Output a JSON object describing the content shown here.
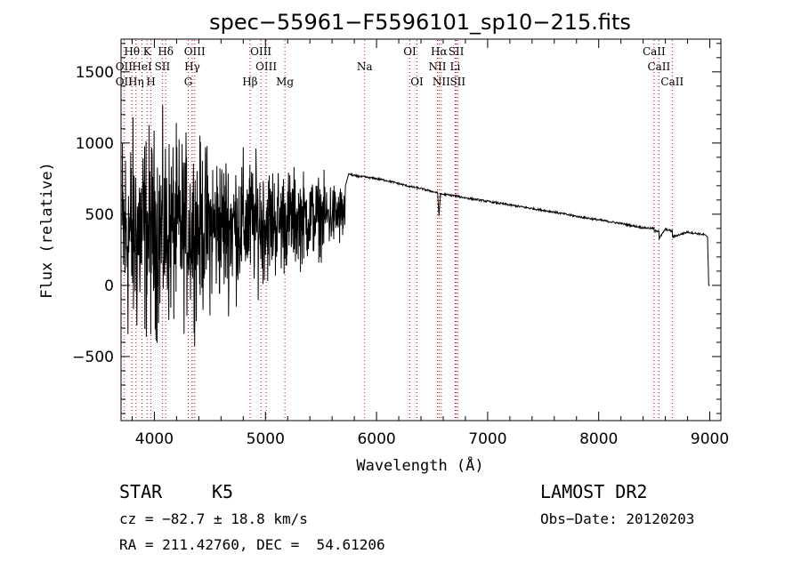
{
  "chart_data": {
    "type": "line",
    "title": "spec−55961−F5596101_sp10−215.fits",
    "xlabel": "Wavelength (Å)",
    "ylabel": "Flux (relative)",
    "xlim": [
      3700,
      9100
    ],
    "ylim": [
      -950,
      1730
    ],
    "x_ticks": [
      4000,
      5000,
      6000,
      7000,
      8000,
      9000
    ],
    "x_tick_labels": [
      "4000",
      "5000",
      "6000",
      "7000",
      "8000",
      "9000"
    ],
    "y_ticks": [
      -500,
      0,
      500,
      1000,
      1500
    ],
    "y_tick_labels": [
      "−500",
      "0",
      "500",
      "1000",
      "1500"
    ],
    "series": [
      {
        "name": "flux",
        "noisy_region": {
          "x_start": 3710,
          "x_end": 5720,
          "mean_start": 350,
          "mean_end": 500,
          "amplitude_start": 850,
          "amplitude_end": 220
        },
        "x": [
          5720,
          5750,
          5800,
          5900,
          6000,
          6100,
          6200,
          6300,
          6400,
          6500,
          6550,
          6562,
          6575,
          6600,
          6700,
          6800,
          7000,
          7200,
          7400,
          7600,
          7800,
          8000,
          8200,
          8400,
          8498,
          8500,
          8542,
          8545,
          8600,
          8662,
          8665,
          8800,
          8960,
          8980,
          8990,
          9000
        ],
        "y": [
          700,
          785,
          770,
          760,
          750,
          735,
          715,
          695,
          680,
          660,
          650,
          490,
          640,
          640,
          630,
          615,
          590,
          565,
          540,
          515,
          485,
          460,
          435,
          405,
          400,
          380,
          385,
          330,
          395,
          380,
          340,
          375,
          355,
          340,
          0,
          0
        ]
      }
    ],
    "line_markers": [
      {
        "label": "Hθ",
        "x": 3798,
        "row": 1
      },
      {
        "label": "K",
        "x": 3934,
        "row": 1
      },
      {
        "label": "Hδ",
        "x": 4102,
        "row": 1
      },
      {
        "label": "OIII",
        "x": 4363,
        "row": 1
      },
      {
        "label": "OIII",
        "x": 4959,
        "row": 1
      },
      {
        "label": "OI",
        "x": 6300,
        "row": 1
      },
      {
        "label": "Hα",
        "x": 6563,
        "row": 1
      },
      {
        "label": "SII",
        "x": 6717,
        "row": 1
      },
      {
        "label": "CaII",
        "x": 8498,
        "row": 1
      },
      {
        "label": "OII",
        "x": 3727,
        "row": 2
      },
      {
        "label": "HeI",
        "x": 3889,
        "row": 2
      },
      {
        "label": "SII",
        "x": 4072,
        "row": 2
      },
      {
        "label": "Hγ",
        "x": 4341,
        "row": 2
      },
      {
        "label": "OIII",
        "x": 5007,
        "row": 2
      },
      {
        "label": "Na",
        "x": 5893,
        "row": 2
      },
      {
        "label": "NII",
        "x": 6548,
        "row": 2
      },
      {
        "label": "Li",
        "x": 6708,
        "row": 2
      },
      {
        "label": "CaII",
        "x": 8542,
        "row": 2
      },
      {
        "label": "OII",
        "x": 3727,
        "row": 3
      },
      {
        "label": "Hη",
        "x": 3835,
        "row": 3
      },
      {
        "label": "H",
        "x": 3969,
        "row": 3
      },
      {
        "label": "G",
        "x": 4305,
        "row": 3
      },
      {
        "label": "Hβ",
        "x": 4861,
        "row": 3
      },
      {
        "label": "Mg",
        "x": 5175,
        "row": 3
      },
      {
        "label": "OI",
        "x": 6364,
        "row": 3
      },
      {
        "label": "NII",
        "x": 6583,
        "row": 3
      },
      {
        "label": "SII",
        "x": 6731,
        "row": 3
      },
      {
        "label": "CaII",
        "x": 8662,
        "row": 3
      }
    ]
  },
  "info": {
    "class": "STAR",
    "subclass": "K5",
    "survey": "LAMOST DR2",
    "cz": "cz = −82.7 ± 18.8 km/s",
    "obs_date": "Obs−Date: 20120203",
    "coords": "RA = 211.42760, DEC =  54.61206"
  },
  "colors": {
    "marker": "#cc0000",
    "ink": "#000000"
  }
}
